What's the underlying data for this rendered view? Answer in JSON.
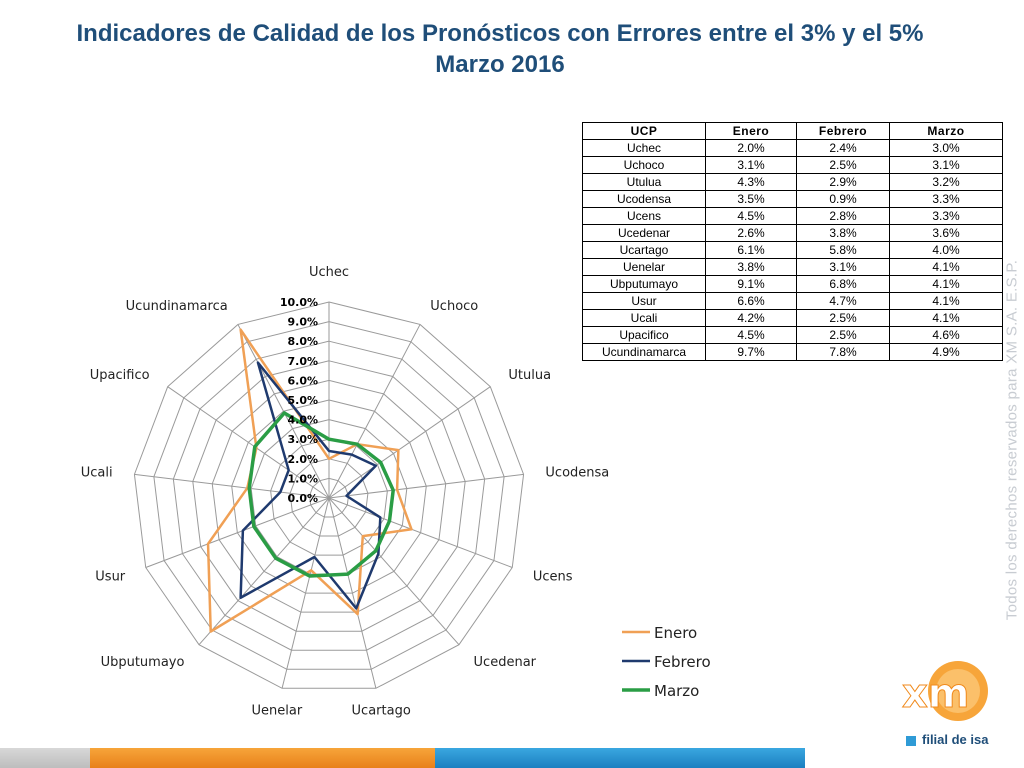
{
  "title_line1": "Indicadores de Calidad de los Pronósticos con Errores entre el 3% y el 5%",
  "title_line2": "Marzo 2016",
  "watermark": "Todos los derechos reservados para XM S.A. E.S.P.",
  "logo": {
    "text": "xm",
    "subtitle": "filial de isa"
  },
  "table": {
    "headers": [
      "UCP",
      "Enero",
      "Febrero",
      "Marzo"
    ],
    "rows": [
      [
        "Uchec",
        "2.0%",
        "2.4%",
        "3.0%"
      ],
      [
        "Uchoco",
        "3.1%",
        "2.5%",
        "3.1%"
      ],
      [
        "Utulua",
        "4.3%",
        "2.9%",
        "3.2%"
      ],
      [
        "Ucodensa",
        "3.5%",
        "0.9%",
        "3.3%"
      ],
      [
        "Ucens",
        "4.5%",
        "2.8%",
        "3.3%"
      ],
      [
        "Ucedenar",
        "2.6%",
        "3.8%",
        "3.6%"
      ],
      [
        "Ucartago",
        "6.1%",
        "5.8%",
        "4.0%"
      ],
      [
        "Uenelar",
        "3.8%",
        "3.1%",
        "4.1%"
      ],
      [
        "Ubputumayo",
        "9.1%",
        "6.8%",
        "4.1%"
      ],
      [
        "Usur",
        "6.6%",
        "4.7%",
        "4.1%"
      ],
      [
        "Ucali",
        "4.2%",
        "2.5%",
        "4.1%"
      ],
      [
        "Upacifico",
        "4.5%",
        "2.5%",
        "4.6%"
      ],
      [
        "Ucundinamarca",
        "9.7%",
        "7.8%",
        "4.9%"
      ]
    ]
  },
  "chart_data": {
    "type": "radar",
    "axes": [
      "Uchec",
      "Uchoco",
      "Utulua",
      "Ucodensa",
      "Ucens",
      "Ucedenar",
      "Ucartago",
      "Uenelar",
      "Ubputumayo",
      "Usur",
      "Ucali",
      "Upacifico",
      "Ucundinamarca"
    ],
    "tick_labels": [
      "0.0%",
      "1.0%",
      "2.0%",
      "3.0%",
      "4.0%",
      "5.0%",
      "6.0%",
      "7.0%",
      "8.0%",
      "9.0%",
      "10.0%"
    ],
    "range": [
      0,
      10
    ],
    "series": [
      {
        "name": "Enero",
        "color": "#f0a055",
        "values": [
          2.0,
          3.1,
          4.3,
          3.5,
          4.5,
          2.6,
          6.1,
          3.8,
          9.1,
          6.6,
          4.2,
          4.5,
          9.7
        ]
      },
      {
        "name": "Febrero",
        "color": "#1f3a6e",
        "values": [
          2.4,
          2.5,
          2.9,
          0.9,
          2.8,
          3.8,
          5.8,
          3.1,
          6.8,
          4.7,
          2.5,
          2.5,
          7.8
        ]
      },
      {
        "name": "Marzo",
        "color": "#2a9d45",
        "values": [
          3.0,
          3.1,
          3.2,
          3.3,
          3.3,
          3.6,
          4.0,
          4.1,
          4.1,
          4.1,
          4.1,
          4.6,
          4.9
        ]
      }
    ],
    "legend_position": "bottom-right",
    "grid": true
  }
}
